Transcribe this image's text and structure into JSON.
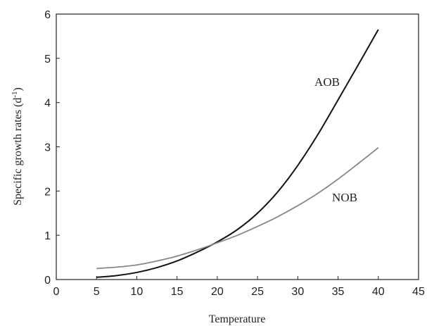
{
  "chart_data": {
    "type": "line",
    "xlabel": "Temperature",
    "ylabel": "Specific growth rates (d",
    "ylabel_sup": "-1",
    "ylabel_end": ")",
    "xlim": [
      0,
      45
    ],
    "ylim": [
      0,
      6
    ],
    "xticks": [
      0,
      5,
      10,
      15,
      20,
      25,
      30,
      35,
      40,
      45
    ],
    "yticks": [
      0,
      1,
      2,
      3,
      4,
      5,
      6
    ],
    "grid": false,
    "series": [
      {
        "name": "AOB",
        "color": "#111111",
        "x": [
          5,
          7.5,
          10,
          12.5,
          15,
          17.5,
          20,
          22.5,
          25,
          27.5,
          30,
          32.5,
          35,
          37.5,
          40
        ],
        "y": [
          0.05,
          0.09,
          0.16,
          0.27,
          0.42,
          0.62,
          0.85,
          1.13,
          1.5,
          1.98,
          2.58,
          3.28,
          4.06,
          4.85,
          5.65
        ]
      },
      {
        "name": "NOB",
        "color": "#888888",
        "x": [
          5,
          7.5,
          10,
          12.5,
          15,
          17.5,
          20,
          22.5,
          25,
          27.5,
          30,
          32.5,
          35,
          37.5,
          40
        ],
        "y": [
          0.25,
          0.28,
          0.33,
          0.42,
          0.53,
          0.67,
          0.83,
          1.0,
          1.2,
          1.42,
          1.67,
          1.95,
          2.27,
          2.62,
          2.98
        ]
      }
    ]
  }
}
